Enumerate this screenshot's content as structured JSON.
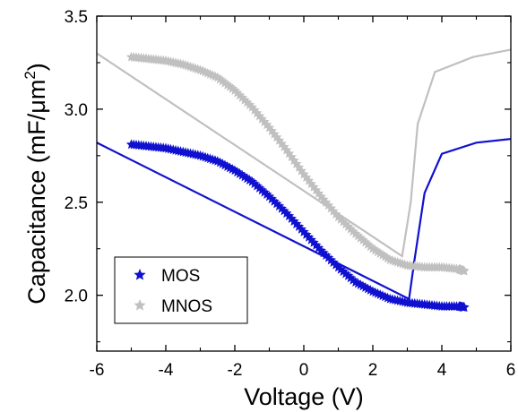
{
  "chart_data": {
    "type": "line",
    "xlabel": "Voltage (V)",
    "ylabel": {
      "prefix": "Capacitance (mF/",
      "mu": "μ",
      "unit_m": "m",
      "sup": "2",
      "suffix": ")"
    },
    "xlim": [
      -6,
      6
    ],
    "ylim": [
      1.7,
      3.5
    ],
    "x_ticks": [
      -6,
      -4,
      -2,
      0,
      2,
      4,
      6
    ],
    "y_ticks": [
      2.0,
      2.5,
      3.0,
      3.5
    ],
    "grid": false,
    "legend_position": "bottom-left",
    "series": [
      {
        "name": "MOS",
        "color": "#1010d0",
        "marker": "star",
        "points": [
          [
            -5.0,
            2.81
          ],
          [
            -4.5,
            2.8
          ],
          [
            -4.0,
            2.79
          ],
          [
            -3.5,
            2.77
          ],
          [
            -3.0,
            2.75
          ],
          [
            -2.5,
            2.72
          ],
          [
            -2.0,
            2.67
          ],
          [
            -1.5,
            2.61
          ],
          [
            -1.0,
            2.53
          ],
          [
            -0.5,
            2.44
          ],
          [
            0.0,
            2.34
          ],
          [
            0.5,
            2.24
          ],
          [
            1.0,
            2.15
          ],
          [
            1.5,
            2.07
          ],
          [
            2.0,
            2.02
          ],
          [
            2.5,
            1.98
          ],
          [
            3.0,
            1.96
          ],
          [
            3.5,
            1.95
          ],
          [
            4.0,
            1.94
          ],
          [
            4.5,
            1.94
          ],
          [
            4.65,
            1.935
          ]
        ],
        "return_line": [
          [
            -6.0,
            2.82
          ],
          [
            3.05,
            1.98
          ],
          [
            3.2,
            2.18
          ],
          [
            3.5,
            2.55
          ],
          [
            4.0,
            2.76
          ],
          [
            5.0,
            2.82
          ],
          [
            6.0,
            2.84
          ]
        ]
      },
      {
        "name": "MNOS",
        "color": "#c0c0c0",
        "marker": "star",
        "points": [
          [
            -5.0,
            3.28
          ],
          [
            -4.5,
            3.27
          ],
          [
            -4.0,
            3.26
          ],
          [
            -3.5,
            3.24
          ],
          [
            -3.0,
            3.21
          ],
          [
            -2.5,
            3.17
          ],
          [
            -2.0,
            3.1
          ],
          [
            -1.5,
            3.01
          ],
          [
            -1.0,
            2.9
          ],
          [
            -0.5,
            2.78
          ],
          [
            0.0,
            2.65
          ],
          [
            0.5,
            2.53
          ],
          [
            1.0,
            2.42
          ],
          [
            1.5,
            2.33
          ],
          [
            2.0,
            2.25
          ],
          [
            2.5,
            2.19
          ],
          [
            3.0,
            2.16
          ],
          [
            3.5,
            2.15
          ],
          [
            4.0,
            2.15
          ],
          [
            4.5,
            2.14
          ],
          [
            4.65,
            2.13
          ]
        ],
        "return_line": [
          [
            -6.0,
            3.3
          ],
          [
            2.85,
            2.21
          ],
          [
            3.1,
            2.5
          ],
          [
            3.3,
            2.92
          ],
          [
            3.8,
            3.2
          ],
          [
            4.9,
            3.28
          ],
          [
            6.0,
            3.32
          ]
        ]
      }
    ]
  }
}
